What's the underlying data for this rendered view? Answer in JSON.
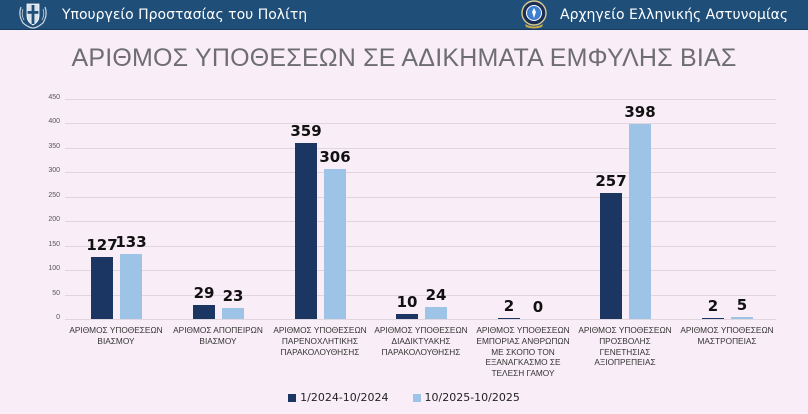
{
  "header": {
    "left_title": "Υπουργείο Προστασίας του Πολίτη",
    "left_icon": "greek-coat-of-arms-icon",
    "right_title": "Αρχηγείο Ελληνικής Αστυνομίας",
    "right_icon": "hellenic-police-badge-icon",
    "background": "#1f4e79"
  },
  "colors": {
    "series1": "#1c3664",
    "series2": "#9dc3e6",
    "background": "#f9eef7",
    "title": "#6d6d72"
  },
  "chart_data": {
    "type": "bar",
    "title": "ΑΡΙΘΜΟΣ ΥΠΟΘΕΣΕΩΝ ΣΕ ΑΔΙΚΗΜΑΤΑ ΕΜΦΥΛΗΣ ΒΙΑΣ",
    "xlabel": "",
    "ylabel": "",
    "ylim": [
      0,
      450
    ],
    "yticks": [
      "0",
      "50",
      "100",
      "150",
      "200",
      "250",
      "300",
      "350",
      "400",
      "450"
    ],
    "grid": true,
    "legend_position": "bottom",
    "categories": [
      [
        "ΑΡΙΘΜΟΣ ΥΠΟΘΕΣΕΩΝ",
        "ΒΙΑΣΜΟΥ"
      ],
      [
        "ΑΡΙΘΜΟΣ ΑΠΟΠΕΙΡΩΝ",
        "ΒΙΑΣΜΟΥ"
      ],
      [
        "ΑΡΙΘΜΟΣ ΥΠΟΘΕΣΕΩΝ",
        "ΠΑΡΕΝΟΧΛΗΤΙΚΗΣ",
        "ΠΑΡΑΚΟΛΟΥΘΗΣΗΣ"
      ],
      [
        "ΑΡΙΘΜΟΣ ΥΠΟΘΕΣΕΩΝ",
        "ΔΙΑΔΙΚΤΥΑΚΗΣ",
        "ΠΑΡΑΚΟΛΟΥΘΗΣΗΣ"
      ],
      [
        "ΑΡΙΘΜΟΣ ΥΠΟΘΕΣΕΩΝ",
        "ΕΜΠΟΡΙΑΣ ΑΝΘΡΩΠΩΝ",
        "ΜΕ ΣΚΟΠΟ ΤΟΝ",
        "ΕΞΑΝΑΓΚΑΣΜΟ ΣΕ",
        "ΤΕΛΕΣΗ ΓΑΜΟΥ"
      ],
      [
        "ΑΡΙΘΜΟΣ ΥΠΟΘΕΣΕΩΝ",
        "ΠΡΟΣΒΟΛΗΣ",
        "ΓΕΝΕΤΗΣΙΑΣ",
        "ΑΞΙΟΠΡΕΠΕΙΑΣ"
      ],
      [
        "ΑΡΙΘΜΟΣ ΥΠΟΘΕΣΕΩΝ",
        "ΜΑΣΤΡΟΠΕΙΑΣ"
      ]
    ],
    "series": [
      {
        "name": "1/2024-10/2024",
        "color": "#1c3664",
        "values": [
          127,
          29,
          359,
          10,
          2,
          257,
          2
        ]
      },
      {
        "name": "10/2025-10/2025",
        "color": "#9dc3e6",
        "values": [
          133,
          23,
          306,
          24,
          0,
          398,
          5
        ]
      }
    ]
  }
}
